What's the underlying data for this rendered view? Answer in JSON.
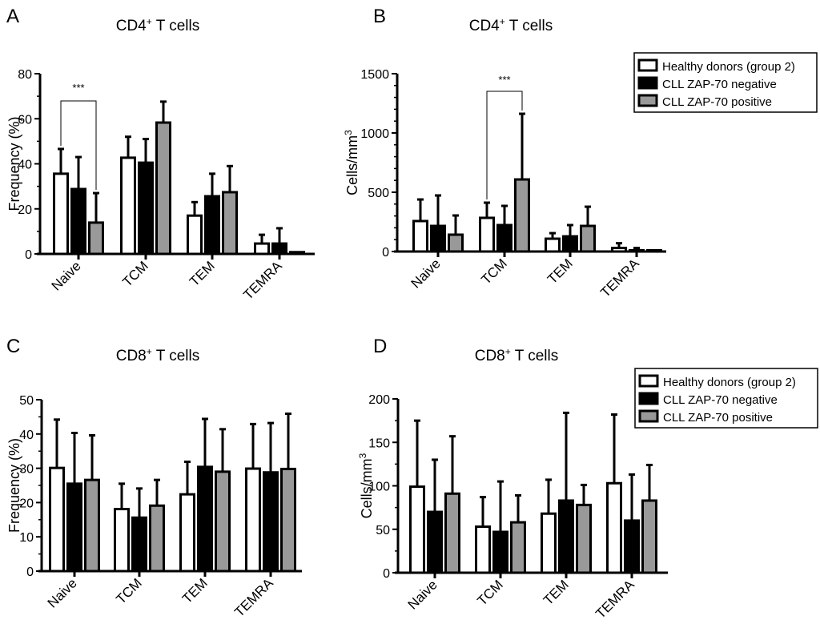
{
  "colors": {
    "healthy": "#ffffff",
    "zap_neg": "#000000",
    "zap_pos": "#999999",
    "stroke": "#000000"
  },
  "legend": {
    "entries": [
      "Healthy donors (group 2)",
      "CLL ZAP-70 negative",
      "CLL ZAP-70 positive"
    ]
  },
  "chart_data": [
    {
      "panel": "A",
      "type": "bar",
      "title": "CD4+ T cells",
      "title_main": "CD4",
      "title_sup": "+",
      "title_rest": " T cells",
      "ylabel": "Frequency (%)",
      "ylabel_sup": "",
      "ylim": [
        0,
        80
      ],
      "yticks": [
        0,
        20,
        40,
        60,
        80
      ],
      "categories": [
        "Naive",
        "TCM",
        "TEM",
        "TEMRA"
      ],
      "series": [
        {
          "name": "Healthy donors (group 2)",
          "values": [
            35.6,
            42.7,
            17.0,
            4.6
          ],
          "errors_upper": [
            46.6,
            52.0,
            23.0,
            8.5
          ]
        },
        {
          "name": "CLL ZAP-70 negative",
          "values": [
            28.8,
            40.5,
            25.6,
            4.6
          ],
          "errors_upper": [
            43.0,
            51.0,
            35.6,
            11.4
          ]
        },
        {
          "name": "CLL ZAP-70 positive",
          "values": [
            13.9,
            58.3,
            27.4,
            0.8
          ],
          "errors_upper": [
            27.0,
            67.6,
            39.0,
            0.8
          ]
        }
      ],
      "significance": {
        "label": "***",
        "category": "Naive",
        "between": [
          0,
          2
        ]
      },
      "legend": false
    },
    {
      "panel": "B",
      "type": "bar",
      "title": "CD4+ T cells",
      "title_main": "CD4",
      "title_sup": "+",
      "title_rest": " T cells",
      "ylabel": "Cells/mm",
      "ylabel_sup": "3",
      "ylim": [
        0,
        1500
      ],
      "yticks": [
        0,
        500,
        1000,
        1500
      ],
      "categories": [
        "Naive",
        "TCM",
        "TEM",
        "TEMRA"
      ],
      "series": [
        {
          "name": "Healthy donors (group 2)",
          "values": [
            257,
            284,
            108,
            30
          ],
          "errors_upper": [
            439,
            412,
            155,
            70
          ]
        },
        {
          "name": "CLL ZAP-70 negative",
          "values": [
            216,
            223,
            128,
            10
          ],
          "errors_upper": [
            473,
            385,
            223,
            30
          ]
        },
        {
          "name": "CLL ZAP-70 positive",
          "values": [
            142,
            608,
            216,
            5
          ],
          "errors_upper": [
            304,
            1162,
            378,
            5
          ]
        }
      ],
      "significance": {
        "label": "***",
        "category": "TCM",
        "between": [
          0,
          2
        ]
      },
      "legend": "top-right"
    },
    {
      "panel": "C",
      "type": "bar",
      "title": "CD8+ T cells",
      "title_main": "CD8",
      "title_sup": "+",
      "title_rest": " T cells",
      "ylabel": "Frequency (%)",
      "ylabel_sup": "",
      "ylim": [
        0,
        50
      ],
      "yticks": [
        0,
        10,
        20,
        30,
        40,
        50
      ],
      "categories": [
        "Naive",
        "TCM",
        "TEM",
        "TEMRA"
      ],
      "series": [
        {
          "name": "Healthy donors (group 2)",
          "values": [
            30.1,
            18.1,
            22.4,
            29.9
          ],
          "errors_upper": [
            44.2,
            25.5,
            31.9,
            42.9
          ]
        },
        {
          "name": "CLL ZAP-70 negative",
          "values": [
            25.5,
            15.6,
            30.4,
            28.8
          ],
          "errors_upper": [
            40.3,
            24.1,
            44.4,
            43.2
          ]
        },
        {
          "name": "CLL ZAP-70 positive",
          "values": [
            26.6,
            19.1,
            29.0,
            29.8
          ],
          "errors_upper": [
            39.6,
            26.6,
            41.4,
            45.9
          ]
        }
      ],
      "significance": null,
      "legend": false
    },
    {
      "panel": "D",
      "type": "bar",
      "title": "CD8+ T cells",
      "title_main": "CD8",
      "title_sup": "+",
      "title_rest": " T cells",
      "ylabel": "Cells/mm",
      "ylabel_sup": "3",
      "ylim": [
        0,
        200
      ],
      "yticks": [
        0,
        50,
        100,
        150,
        200
      ],
      "categories": [
        "Naive",
        "TCM",
        "TEM",
        "TEMRA"
      ],
      "series": [
        {
          "name": "Healthy donors (group 2)",
          "values": [
            99,
            53,
            68,
            103
          ],
          "errors_upper": [
            175,
            87,
            107,
            182
          ]
        },
        {
          "name": "CLL ZAP-70 negative",
          "values": [
            70,
            47,
            83,
            60
          ],
          "errors_upper": [
            130,
            105,
            184,
            113
          ]
        },
        {
          "name": "CLL ZAP-70 positive",
          "values": [
            91,
            58,
            78,
            83
          ],
          "errors_upper": [
            157,
            89,
            101,
            124
          ]
        }
      ],
      "significance": null,
      "legend": "top-right"
    }
  ]
}
